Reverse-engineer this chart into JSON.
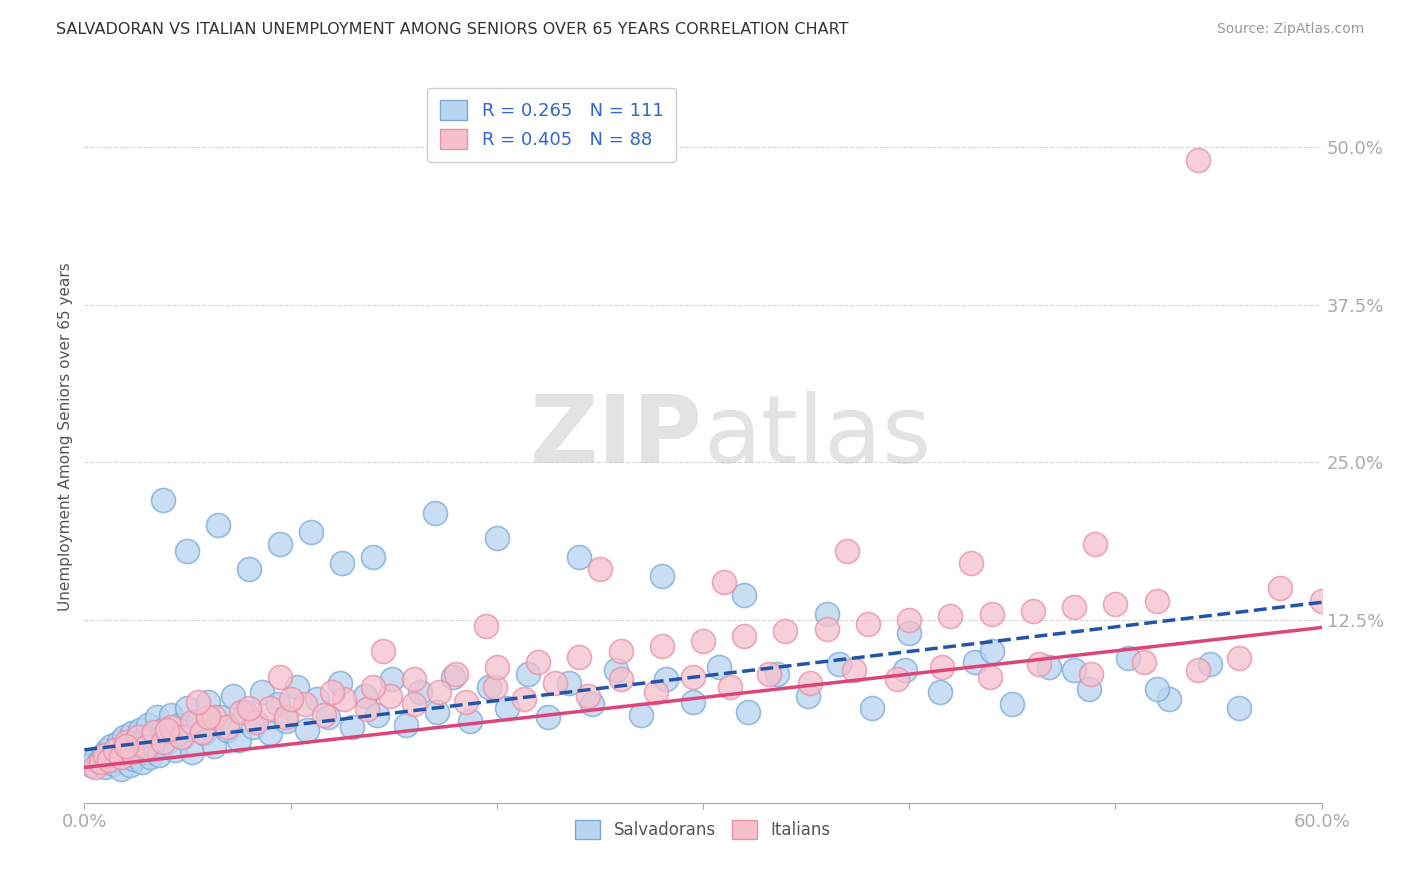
{
  "title": "SALVADORAN VS ITALIAN UNEMPLOYMENT AMONG SENIORS OVER 65 YEARS CORRELATION CHART",
  "source": "Source: ZipAtlas.com",
  "ylabel": "Unemployment Among Seniors over 65 years",
  "xlim": [
    0.0,
    0.6
  ],
  "ylim": [
    -0.02,
    0.56
  ],
  "ytick_positions": [
    0.0,
    0.125,
    0.25,
    0.375,
    0.5
  ],
  "ytick_labels": [
    "",
    "12.5%",
    "25.0%",
    "37.5%",
    "50.0%"
  ],
  "watermark_zip": "ZIP",
  "watermark_atlas": "atlas",
  "legend_r1": "R = 0.265",
  "legend_n1": "N = 111",
  "legend_r2": "R = 0.405",
  "legend_n2": "N = 88",
  "blue_fill": "#B8D4F0",
  "blue_edge": "#7AAAD8",
  "pink_fill": "#F5C0CC",
  "pink_edge": "#E890A8",
  "blue_line_color": "#2255AA",
  "pink_line_color": "#DD4477",
  "grid_color": "#CCCCCC",
  "background_color": "#FFFFFF",
  "title_color": "#333333",
  "source_color": "#999999",
  "tick_color": "#5588CC",
  "ylabel_color": "#555555",
  "blue_slope": 0.195,
  "blue_intercept": 0.022,
  "pink_slope": 0.185,
  "pink_intercept": 0.008,
  "salvadoran_x": [
    0.003,
    0.005,
    0.007,
    0.009,
    0.01,
    0.011,
    0.012,
    0.013,
    0.014,
    0.015,
    0.016,
    0.017,
    0.018,
    0.019,
    0.02,
    0.021,
    0.022,
    0.023,
    0.024,
    0.025,
    0.026,
    0.027,
    0.028,
    0.029,
    0.03,
    0.031,
    0.032,
    0.033,
    0.034,
    0.035,
    0.036,
    0.038,
    0.04,
    0.042,
    0.044,
    0.046,
    0.048,
    0.05,
    0.052,
    0.055,
    0.058,
    0.06,
    0.063,
    0.066,
    0.069,
    0.072,
    0.075,
    0.078,
    0.082,
    0.086,
    0.09,
    0.094,
    0.098,
    0.103,
    0.108,
    0.113,
    0.118,
    0.124,
    0.13,
    0.136,
    0.142,
    0.149,
    0.156,
    0.163,
    0.171,
    0.179,
    0.187,
    0.196,
    0.205,
    0.215,
    0.225,
    0.235,
    0.246,
    0.258,
    0.27,
    0.282,
    0.295,
    0.308,
    0.322,
    0.336,
    0.351,
    0.366,
    0.382,
    0.398,
    0.415,
    0.432,
    0.45,
    0.468,
    0.487,
    0.506,
    0.526,
    0.546,
    0.05,
    0.08,
    0.11,
    0.14,
    0.17,
    0.2,
    0.24,
    0.28,
    0.32,
    0.36,
    0.4,
    0.44,
    0.48,
    0.52,
    0.56,
    0.038,
    0.065,
    0.095,
    0.125
  ],
  "salvadoran_y": [
    0.01,
    0.015,
    0.012,
    0.018,
    0.008,
    0.022,
    0.016,
    0.025,
    0.011,
    0.02,
    0.014,
    0.028,
    0.007,
    0.032,
    0.018,
    0.024,
    0.01,
    0.035,
    0.015,
    0.028,
    0.022,
    0.038,
    0.012,
    0.03,
    0.02,
    0.042,
    0.016,
    0.034,
    0.025,
    0.048,
    0.018,
    0.038,
    0.028,
    0.05,
    0.022,
    0.042,
    0.032,
    0.055,
    0.02,
    0.045,
    0.035,
    0.06,
    0.025,
    0.048,
    0.038,
    0.065,
    0.03,
    0.052,
    0.04,
    0.068,
    0.035,
    0.058,
    0.045,
    0.072,
    0.038,
    0.062,
    0.048,
    0.075,
    0.04,
    0.065,
    0.05,
    0.078,
    0.042,
    0.068,
    0.052,
    0.08,
    0.045,
    0.072,
    0.055,
    0.082,
    0.048,
    0.075,
    0.058,
    0.085,
    0.05,
    0.078,
    0.06,
    0.088,
    0.052,
    0.082,
    0.065,
    0.09,
    0.055,
    0.085,
    0.068,
    0.092,
    0.058,
    0.088,
    0.07,
    0.095,
    0.062,
    0.09,
    0.18,
    0.165,
    0.195,
    0.175,
    0.21,
    0.19,
    0.175,
    0.16,
    0.145,
    0.13,
    0.115,
    0.1,
    0.085,
    0.07,
    0.055,
    0.22,
    0.2,
    0.185,
    0.17
  ],
  "italian_x": [
    0.005,
    0.008,
    0.01,
    0.012,
    0.015,
    0.018,
    0.02,
    0.023,
    0.026,
    0.03,
    0.034,
    0.038,
    0.042,
    0.047,
    0.052,
    0.057,
    0.063,
    0.069,
    0.076,
    0.083,
    0.09,
    0.098,
    0.107,
    0.116,
    0.126,
    0.137,
    0.148,
    0.16,
    0.172,
    0.185,
    0.199,
    0.213,
    0.228,
    0.244,
    0.26,
    0.277,
    0.295,
    0.313,
    0.332,
    0.352,
    0.373,
    0.394,
    0.416,
    0.439,
    0.463,
    0.488,
    0.514,
    0.54,
    0.02,
    0.04,
    0.06,
    0.08,
    0.1,
    0.12,
    0.14,
    0.16,
    0.18,
    0.2,
    0.22,
    0.24,
    0.26,
    0.28,
    0.3,
    0.32,
    0.34,
    0.36,
    0.38,
    0.4,
    0.42,
    0.44,
    0.46,
    0.48,
    0.5,
    0.52,
    0.54,
    0.56,
    0.58,
    0.6,
    0.055,
    0.095,
    0.145,
    0.195,
    0.25,
    0.31,
    0.37,
    0.43,
    0.49
  ],
  "italian_y": [
    0.008,
    0.012,
    0.018,
    0.014,
    0.022,
    0.016,
    0.028,
    0.02,
    0.032,
    0.024,
    0.036,
    0.028,
    0.04,
    0.032,
    0.044,
    0.036,
    0.048,
    0.04,
    0.052,
    0.044,
    0.055,
    0.048,
    0.058,
    0.05,
    0.062,
    0.054,
    0.065,
    0.058,
    0.068,
    0.06,
    0.072,
    0.062,
    0.075,
    0.065,
    0.078,
    0.068,
    0.08,
    0.072,
    0.082,
    0.075,
    0.085,
    0.078,
    0.088,
    0.08,
    0.09,
    0.082,
    0.092,
    0.085,
    0.025,
    0.038,
    0.048,
    0.055,
    0.062,
    0.068,
    0.072,
    0.078,
    0.082,
    0.088,
    0.092,
    0.096,
    0.1,
    0.104,
    0.108,
    0.112,
    0.116,
    0.118,
    0.122,
    0.125,
    0.128,
    0.13,
    0.132,
    0.135,
    0.138,
    0.14,
    0.49,
    0.095,
    0.15,
    0.14,
    0.06,
    0.08,
    0.1,
    0.12,
    0.165,
    0.155,
    0.18,
    0.17,
    0.185
  ]
}
